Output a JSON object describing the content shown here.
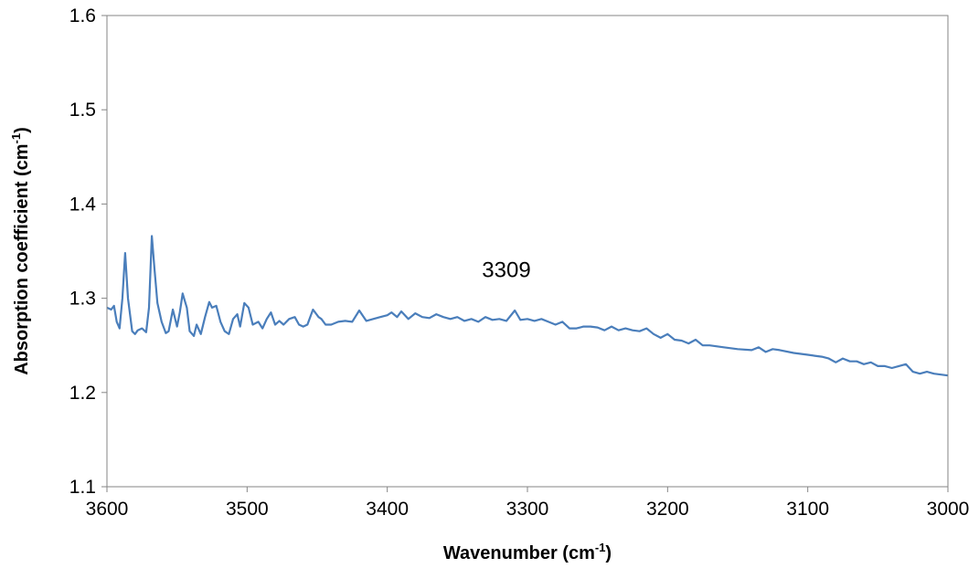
{
  "chart_data": {
    "type": "line",
    "xlabel": {
      "main": "Wavenumber (cm",
      "sup": "-1",
      "tail": ")"
    },
    "ylabel": {
      "main": "Absorption coefficient (cm",
      "sup": "-1",
      "tail": ")"
    },
    "xlim": [
      3600,
      3000
    ],
    "ylim": [
      1.1,
      1.6
    ],
    "x_reversed": true,
    "x_ticks": [
      "3600",
      "3500",
      "3400",
      "3300",
      "3200",
      "3100",
      "3000"
    ],
    "y_ticks": [
      "1.1",
      "1.2",
      "1.3",
      "1.4",
      "1.5",
      "1.6"
    ],
    "x_tick_values": [
      3600,
      3500,
      3400,
      3300,
      3200,
      3100,
      3000
    ],
    "y_tick_values": [
      1.1,
      1.2,
      1.3,
      1.4,
      1.5,
      1.6
    ],
    "grid": false,
    "line_color": "#4a7ebb",
    "annotations": [
      {
        "text": "3309",
        "x": 3315,
        "y": 1.33
      }
    ],
    "series": [
      {
        "x": [
          3600,
          3597,
          3595,
          3593,
          3591,
          3589,
          3587,
          3585,
          3582,
          3580,
          3578,
          3575,
          3572,
          3570,
          3568,
          3566,
          3564,
          3561,
          3558,
          3556,
          3553,
          3550,
          3548,
          3546,
          3543,
          3541,
          3538,
          3536,
          3533,
          3530,
          3527,
          3525,
          3522,
          3519,
          3516,
          3513,
          3510,
          3507,
          3505,
          3502,
          3499,
          3496,
          3492,
          3489,
          3486,
          3483,
          3480,
          3477,
          3474,
          3470,
          3466,
          3463,
          3460,
          3457,
          3453,
          3449,
          3447,
          3444,
          3440,
          3435,
          3430,
          3425,
          3420,
          3415,
          3410,
          3405,
          3400,
          3397,
          3393,
          3390,
          3385,
          3380,
          3375,
          3370,
          3365,
          3360,
          3355,
          3350,
          3345,
          3340,
          3335,
          3330,
          3325,
          3320,
          3315,
          3309,
          3305,
          3300,
          3295,
          3290,
          3285,
          3280,
          3275,
          3270,
          3265,
          3260,
          3255,
          3250,
          3245,
          3240,
          3235,
          3230,
          3225,
          3220,
          3215,
          3210,
          3205,
          3200,
          3195,
          3190,
          3185,
          3180,
          3175,
          3170,
          3160,
          3150,
          3140,
          3135,
          3130,
          3125,
          3120,
          3110,
          3100,
          3095,
          3090,
          3085,
          3080,
          3075,
          3070,
          3065,
          3060,
          3055,
          3050,
          3045,
          3040,
          3035,
          3030,
          3025,
          3020,
          3015,
          3010,
          3005,
          3000
        ],
        "y": [
          1.29,
          1.288,
          1.292,
          1.275,
          1.268,
          1.3,
          1.348,
          1.3,
          1.265,
          1.262,
          1.266,
          1.268,
          1.264,
          1.29,
          1.366,
          1.33,
          1.295,
          1.275,
          1.263,
          1.265,
          1.288,
          1.27,
          1.285,
          1.305,
          1.29,
          1.265,
          1.26,
          1.272,
          1.262,
          1.28,
          1.296,
          1.29,
          1.292,
          1.275,
          1.265,
          1.262,
          1.278,
          1.283,
          1.27,
          1.295,
          1.29,
          1.272,
          1.275,
          1.268,
          1.278,
          1.285,
          1.272,
          1.276,
          1.272,
          1.278,
          1.28,
          1.272,
          1.27,
          1.272,
          1.288,
          1.28,
          1.278,
          1.272,
          1.272,
          1.275,
          1.276,
          1.275,
          1.287,
          1.276,
          1.278,
          1.28,
          1.282,
          1.285,
          1.28,
          1.286,
          1.278,
          1.284,
          1.28,
          1.279,
          1.283,
          1.28,
          1.278,
          1.28,
          1.276,
          1.278,
          1.275,
          1.28,
          1.277,
          1.278,
          1.276,
          1.287,
          1.277,
          1.278,
          1.276,
          1.278,
          1.275,
          1.272,
          1.275,
          1.268,
          1.268,
          1.27,
          1.27,
          1.269,
          1.266,
          1.27,
          1.266,
          1.268,
          1.266,
          1.265,
          1.268,
          1.262,
          1.258,
          1.262,
          1.256,
          1.255,
          1.252,
          1.256,
          1.25,
          1.25,
          1.248,
          1.246,
          1.245,
          1.248,
          1.243,
          1.246,
          1.245,
          1.242,
          1.24,
          1.239,
          1.238,
          1.236,
          1.232,
          1.236,
          1.233,
          1.233,
          1.23,
          1.232,
          1.228,
          1.228,
          1.226,
          1.228,
          1.23,
          1.222,
          1.22,
          1.222,
          1.22,
          1.219,
          1.218
        ]
      }
    ]
  }
}
